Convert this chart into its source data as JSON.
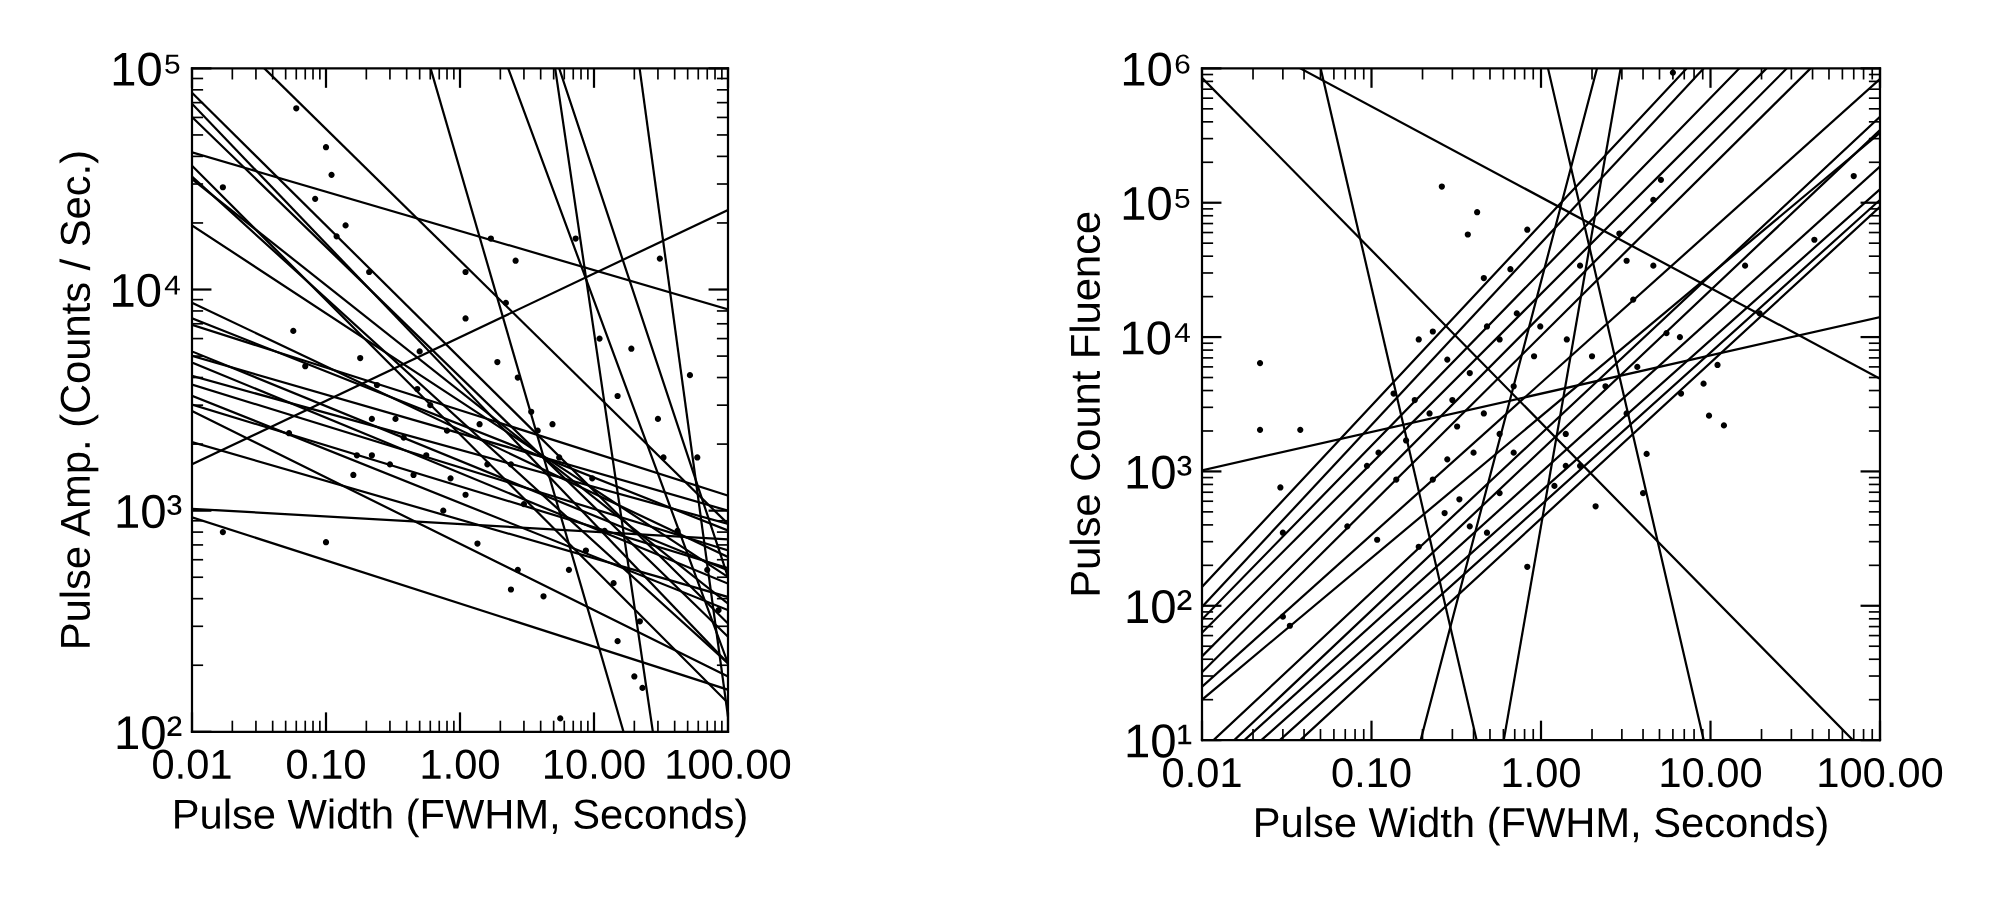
{
  "chart_data": [
    {
      "type": "scatter",
      "log": "xy",
      "xlabel": "Pulse Width (FWHM, Seconds)",
      "ylabel": "Pulse Amp. (Counts / Sec.)",
      "xlim": [
        0.01,
        100
      ],
      "ylim": [
        100,
        100000
      ],
      "xticks": [
        {
          "value": 0.01,
          "label": "0.01"
        },
        {
          "value": 0.1,
          "label": "0.10"
        },
        {
          "value": 1,
          "label": "1.00"
        },
        {
          "value": 10,
          "label": "10.00"
        },
        {
          "value": 100,
          "label": "100.00"
        }
      ],
      "yticks": [
        {
          "value": 100,
          "label": "10²"
        },
        {
          "value": 1000,
          "label": "10³"
        },
        {
          "value": 10000,
          "label": "10⁴"
        },
        {
          "value": 100000,
          "label": "10⁵"
        }
      ],
      "series": [
        {
          "color": "#000000",
          "marker": "circle",
          "x": [
            0.017,
            0.017,
            0.06,
            0.1,
            0.11,
            0.083,
            0.12,
            0.14,
            0.21,
            0.057,
            0.07,
            0.053,
            0.1,
            0.18,
            0.17,
            0.22,
            0.16,
            0.22,
            0.33,
            0.48,
            0.45,
            0.6,
            0.8,
            0.85,
            1.1,
            1.1,
            1.1,
            1.7,
            2.6,
            2.2,
            1.9,
            2.7,
            3.4,
            2.4,
            3.0,
            2.4,
            2.7,
            4.2,
            5.6,
            7.3,
            11,
            15,
            19,
            31,
            30,
            33,
            52,
            59,
            42,
            22,
            20,
            23,
            15,
            6.5,
            8.7,
            12,
            9.7,
            5.5,
            4.9,
            70,
            85,
            14,
            3.8,
            1.4,
            1.6,
            1.35,
            0.75,
            0.56,
            0.3,
            0.38,
            0.24,
            0.5
          ],
          "values": [
            29000,
            800,
            66000,
            44000,
            33000,
            25700,
            17400,
            19500,
            12000,
            6500,
            4500,
            2240,
            720,
            4900,
            1780,
            1780,
            1450,
            2600,
            2600,
            3550,
            1450,
            3000,
            2300,
            1400,
            1180,
            7400,
            12000,
            17000,
            13500,
            8700,
            4700,
            4000,
            2800,
            1620,
            1070,
            440,
            540,
            410,
            115,
            17000,
            6000,
            3300,
            5400,
            13800,
            2600,
            1740,
            4100,
            1740,
            810,
            316,
            178,
            158,
            257,
            540,
            660,
            810,
            1400,
            1740,
            2460,
            540,
            355,
            470,
            2300,
            2460,
            1620,
            710,
            1000,
            1780,
            1620,
            2140,
            3700,
            5250
          ]
        },
        {
          "type": "line",
          "color": "#000000",
          "x": [
            0.01,
            100
          ],
          "values": [
            77600,
            309
          ]
        },
        {
          "type": "line",
          "color": "#000000",
          "x": [
            0.01,
            100
          ],
          "values": [
            69200,
            204
          ]
        },
        {
          "type": "line",
          "color": "#000000",
          "x": [
            0.01,
            100
          ],
          "values": [
            60300,
            269
          ]
        },
        {
          "type": "line",
          "color": "#000000",
          "x": [
            0.01,
            100
          ],
          "values": [
            41700,
            8130
          ]
        },
        {
          "type": "line",
          "color": "#000000",
          "x": [
            0.01,
            100
          ],
          "values": [
            36300,
            135
          ]
        },
        {
          "type": "line",
          "color": "#000000",
          "x": [
            0.01,
            100
          ],
          "values": [
            32400,
            204
          ]
        },
        {
          "type": "line",
          "color": "#000000",
          "x": [
            0.01,
            100
          ],
          "values": [
            31600,
            380
          ]
        },
        {
          "type": "line",
          "color": "#000000",
          "x": [
            0.01,
            100
          ],
          "values": [
            19500,
            501
          ]
        },
        {
          "type": "line",
          "color": "#000000",
          "x": [
            0.01,
            100
          ],
          "values": [
            8710,
            617
          ]
        },
        {
          "type": "line",
          "color": "#000000",
          "x": [
            0.01,
            100
          ],
          "values": [
            7410,
            813
          ]
        },
        {
          "type": "line",
          "color": "#000000",
          "x": [
            0.01,
            100
          ],
          "values": [
            6920,
            1170
          ]
        },
        {
          "type": "line",
          "color": "#000000",
          "x": [
            0.01,
            100
          ],
          "values": [
            5250,
            537
          ]
        },
        {
          "type": "line",
          "color": "#000000",
          "x": [
            0.01,
            100
          ],
          "values": [
            5010,
            1000
          ]
        },
        {
          "type": "line",
          "color": "#000000",
          "x": [
            0.01,
            100
          ],
          "values": [
            4680,
            468
          ]
        },
        {
          "type": "line",
          "color": "#000000",
          "x": [
            0.01,
            100
          ],
          "values": [
            4070,
            871
          ]
        },
        {
          "type": "line",
          "color": "#000000",
          "x": [
            0.01,
            100
          ],
          "values": [
            3720,
            661
          ]
        },
        {
          "type": "line",
          "color": "#000000",
          "x": [
            0.01,
            100
          ],
          "values": [
            3310,
            355
          ]
        },
        {
          "type": "line",
          "color": "#000000",
          "x": [
            0.01,
            100
          ],
          "values": [
            3020,
            550
          ]
        },
        {
          "type": "line",
          "color": "#000000",
          "x": [
            0.01,
            100
          ],
          "values": [
            2820,
            178
          ]
        },
        {
          "type": "line",
          "color": "#000000",
          "x": [
            0.01,
            100
          ],
          "values": [
            2040,
            407
          ]
        },
        {
          "type": "line",
          "color": "#000000",
          "x": [
            0.01,
            100
          ],
          "values": [
            1620,
            22900
          ]
        },
        {
          "type": "line",
          "color": "#000000",
          "x": [
            0.01,
            100
          ],
          "values": [
            1020,
            741
          ]
        },
        {
          "type": "line",
          "color": "#000000",
          "x": [
            0.01,
            100
          ],
          "values": [
            933,
            155
          ]
        },
        {
          "type": "line",
          "color": "#000000",
          "x": [
            0.0347,
            100
          ],
          "values": [
            100000,
            871
          ]
        },
        {
          "type": "line",
          "color": "#000000",
          "x": [
            0.603,
            16.6
          ],
          "values": [
            100000,
            100
          ]
        },
        {
          "type": "line",
          "color": "#000000",
          "x": [
            2.29,
            100
          ],
          "values": [
            100000,
            204
          ]
        },
        {
          "type": "line",
          "color": "#000000",
          "x": [
            5.13,
            27.5
          ],
          "values": [
            100000,
            100
          ]
        },
        {
          "type": "line",
          "color": "#000000",
          "x": [
            5.5,
            100
          ],
          "values": [
            100000,
            501
          ]
        },
        {
          "type": "line",
          "color": "#000000",
          "x": [
            21.9,
            100
          ],
          "values": [
            100000,
            117
          ]
        }
      ]
    },
    {
      "type": "scatter",
      "log": "xy",
      "xlabel": "Pulse Width (FWHM, Seconds)",
      "ylabel": "Pulse Count Fluence",
      "xlim": [
        0.01,
        100
      ],
      "ylim": [
        10,
        1000000
      ],
      "xticks": [
        {
          "value": 0.01,
          "label": "0.01"
        },
        {
          "value": 0.1,
          "label": "0.10"
        },
        {
          "value": 1,
          "label": "1.00"
        },
        {
          "value": 10,
          "label": "10.00"
        },
        {
          "value": 100,
          "label": "100.00"
        }
      ],
      "yticks": [
        {
          "value": 10,
          "label": "10¹"
        },
        {
          "value": 100,
          "label": "10²"
        },
        {
          "value": 1000,
          "label": "10³"
        },
        {
          "value": 10000,
          "label": "10⁴"
        },
        {
          "value": 100000,
          "label": "10⁵"
        },
        {
          "value": 1000000,
          "label": "10⁶"
        }
      ],
      "series": [
        {
          "color": "#000000",
          "marker": "circle",
          "x": [
            0.022,
            0.022,
            0.038,
            0.029,
            0.03,
            0.03,
            0.033,
            0.26,
            0.42,
            0.37,
            0.83,
            0.46,
            0.66,
            0.19,
            0.23,
            0.28,
            0.48,
            0.57,
            0.72,
            0.99,
            1.42,
            1.7,
            2.9,
            3.2,
            4.6,
            5.1,
            6.0,
            4.6,
            3.5,
            3.7,
            5.5,
            6.7,
            9.1,
            11,
            9.8,
            12,
            6.6,
            16,
            41,
            70,
            19.5,
            4.2,
            4.0,
            3.2,
            2.4,
            2.0,
            1.4,
            1.4,
            1.2,
            0.83,
            0.57,
            0.48,
            0.38,
            0.33,
            0.28,
            0.23,
            0.19,
            0.108,
            0.11,
            0.135,
            0.18,
            0.22,
            0.3,
            0.38,
            0.46,
            0.57,
            0.69,
            0.91,
            0.69,
            0.4,
            0.16,
            0.094,
            0.072,
            0.14,
            0.27,
            0.32,
            1.7,
            2.1
          ],
          "values": [
            6400,
            2040,
            2040,
            760,
            350,
            83,
            71,
            132000,
            85000,
            58000,
            63000,
            27500,
            32000,
            9600,
            11000,
            6800,
            12000,
            9600,
            15000,
            12000,
            9600,
            34000,
            59000,
            37000,
            105000,
            148000,
            930000,
            34000,
            19000,
            6000,
            10700,
            3800,
            4500,
            6200,
            2600,
            2200,
            10000,
            34000,
            53000,
            158000,
            15000,
            1350,
            690,
            2700,
            4300,
            7200,
            1900,
            1100,
            780,
            195,
            690,
            350,
            390,
            620,
            1230,
            870,
            275,
            310,
            1380,
            3800,
            3400,
            2700,
            3400,
            5400,
            2700,
            1900,
            4300,
            7200,
            1380,
            1380,
            1700,
            1100,
            390,
            870,
            490,
            2160,
            1100,
            550
          ]
        },
        {
          "type": "line",
          "color": "#000000",
          "x": [
            0.01,
            7.24
          ],
          "values": [
            138,
            1000000
          ]
        },
        {
          "type": "line",
          "color": "#000000",
          "x": [
            0.01,
            9.12
          ],
          "values": [
            98,
            1000000
          ]
        },
        {
          "type": "line",
          "color": "#000000",
          "x": [
            0.01,
            14.8
          ],
          "values": [
            79,
            1000000
          ]
        },
        {
          "type": "line",
          "color": "#000000",
          "x": [
            0.01,
            21.4
          ],
          "values": [
            63,
            1000000
          ]
        },
        {
          "type": "line",
          "color": "#000000",
          "x": [
            0.01,
            28.2
          ],
          "values": [
            42,
            1000000
          ]
        },
        {
          "type": "line",
          "color": "#000000",
          "x": [
            0.01,
            38.9
          ],
          "values": [
            32,
            1000000
          ]
        },
        {
          "type": "line",
          "color": "#000000",
          "x": [
            0.01,
            100
          ],
          "values": [
            25,
            832000
          ]
        },
        {
          "type": "line",
          "color": "#000000",
          "x": [
            0.0117,
            100
          ],
          "values": [
            10,
            437000
          ]
        },
        {
          "type": "line",
          "color": "#000000",
          "x": [
            0.0155,
            100
          ],
          "values": [
            10,
            347000
          ]
        },
        {
          "type": "line",
          "color": "#000000",
          "x": [
            0.0178,
            100
          ],
          "values": [
            10,
            186000
          ]
        },
        {
          "type": "line",
          "color": "#000000",
          "x": [
            0.0224,
            100
          ],
          "values": [
            10,
            126000
          ]
        },
        {
          "type": "line",
          "color": "#000000",
          "x": [
            0.0288,
            100
          ],
          "values": [
            10,
            105000
          ]
        },
        {
          "type": "line",
          "color": "#000000",
          "x": [
            0.038,
            100
          ],
          "values": [
            10,
            93300
          ]
        },
        {
          "type": "line",
          "color": "#000000",
          "x": [
            0.01,
            100
          ],
          "values": [
            20,
            331000
          ]
        },
        {
          "type": "line",
          "color": "#000000",
          "x": [
            0.01,
            100
          ],
          "values": [
            1020,
            14100
          ]
        },
        {
          "type": "line",
          "color": "#000000",
          "x": [
            0.01,
            69.2
          ],
          "values": [
            851000,
            10
          ]
        },
        {
          "type": "line",
          "color": "#000000",
          "x": [
            0.038,
            100
          ],
          "values": [
            1000000,
            4900
          ]
        },
        {
          "type": "line",
          "color": "#000000",
          "x": [
            0.0501,
            0.417
          ],
          "values": [
            1000000,
            10
          ]
        },
        {
          "type": "line",
          "color": "#000000",
          "x": [
            1.1,
            9.12
          ],
          "values": [
            1000000,
            10
          ]
        },
        {
          "type": "line",
          "color": "#000000",
          "x": [
            0.195,
            2.14
          ],
          "values": [
            10,
            1000000
          ]
        },
        {
          "type": "line",
          "color": "#000000",
          "x": [
            0.603,
            2.95
          ],
          "values": [
            10,
            1000000
          ]
        }
      ]
    }
  ]
}
